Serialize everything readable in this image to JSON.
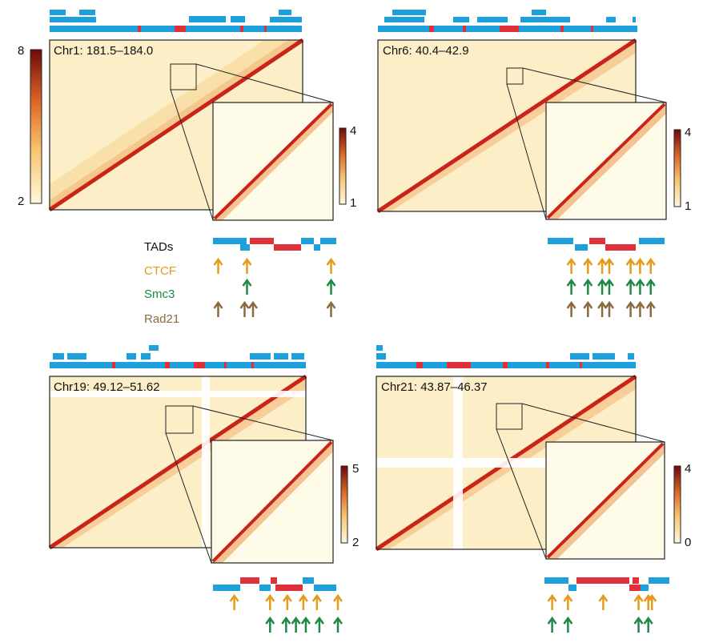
{
  "colors": {
    "tad_blue": "#1ea0dc",
    "tad_red": "#e0303a",
    "ctcf": "#e59a1a",
    "smc3": "#1e8a45",
    "rad21": "#8c6a3f",
    "heat_low": "#fff8dc",
    "heat_mid": "#f3a24f",
    "heat_high": "#7a0a0a"
  },
  "legend": {
    "tads": "TADs",
    "ctcf": "CTCF",
    "smc3": "Smc3",
    "rad21": "Rad21"
  },
  "panels": [
    {
      "title": "Chr1: 181.5–184.0",
      "main_scale": {
        "max": "8",
        "min": "2"
      },
      "inset_scale": {
        "max": "4",
        "min": "1"
      },
      "ctcf_arrows": [
        0.03,
        0.27,
        0.97
      ],
      "smc3_arrows": [
        0.27,
        0.97
      ],
      "rad21_arrows": [
        0.03,
        0.25,
        0.32,
        0.97
      ]
    },
    {
      "title": "Chr6: 40.4–42.9",
      "inset_scale": {
        "max": "4",
        "min": "1"
      },
      "ctcf_arrows": [
        0.2,
        0.34,
        0.46,
        0.52,
        0.7,
        0.78,
        0.87
      ],
      "smc3_arrows": [
        0.2,
        0.34,
        0.46,
        0.52,
        0.7,
        0.78,
        0.87
      ],
      "rad21_arrows": [
        0.2,
        0.34,
        0.46,
        0.52,
        0.7,
        0.78,
        0.87
      ]
    },
    {
      "title": "Chr19: 49.12–51.62",
      "inset_scale": {
        "max": "5",
        "min": "2"
      },
      "ctcf_arrows": [
        0.16,
        0.45,
        0.59,
        0.72,
        0.83,
        1.0
      ],
      "smc3_arrows": [
        0.45,
        0.58,
        0.66,
        0.74,
        0.85,
        1.0
      ]
    },
    {
      "title": "Chr21: 43.87–46.37",
      "inset_scale": {
        "max": "4",
        "min": "0"
      },
      "ctcf_arrows": [
        0.05,
        0.18,
        0.47,
        0.76,
        0.84,
        0.87
      ],
      "smc3_arrows": [
        0.05,
        0.18,
        0.76,
        0.84
      ]
    }
  ]
}
